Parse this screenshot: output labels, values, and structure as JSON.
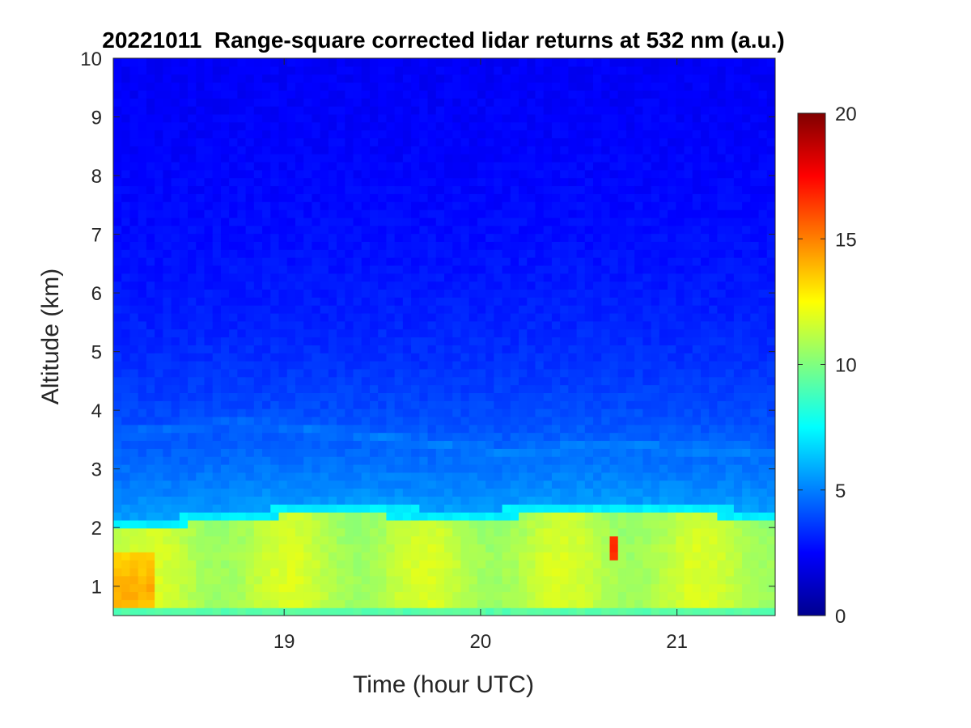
{
  "chart_data": {
    "type": "heatmap",
    "title": "20221011  Range-square corrected lidar returns at 532 nm (a.u.)",
    "xlabel": "Time (hour UTC)",
    "ylabel": "Altitude (km)",
    "xlim": [
      18.13,
      21.5
    ],
    "ylim": [
      0.5,
      10
    ],
    "xticks": [
      19,
      20,
      21
    ],
    "xtick_labels": [
      "19",
      "20",
      "21"
    ],
    "yticks": [
      1,
      2,
      3,
      4,
      5,
      6,
      7,
      8,
      9,
      10
    ],
    "ytick_labels": [
      "1",
      "2",
      "3",
      "4",
      "5",
      "6",
      "7",
      "8",
      "9",
      "10"
    ],
    "colormap": "jet",
    "colorbar": {
      "clim": [
        0,
        20
      ],
      "ticks": [
        0,
        5,
        10,
        15,
        20
      ],
      "tick_labels": [
        "0",
        "5",
        "10",
        "15",
        "20"
      ]
    },
    "features": {
      "boundary_layer_top_km": [
        {
          "time": 18.13,
          "value": 2.0
        },
        {
          "time": 18.35,
          "value": 2.0
        },
        {
          "time": 18.6,
          "value": 2.1
        },
        {
          "time": 19.0,
          "value": 2.2
        },
        {
          "time": 19.5,
          "value": 2.2
        },
        {
          "time": 20.0,
          "value": 2.15
        },
        {
          "time": 20.2,
          "value": 2.2
        },
        {
          "time": 20.5,
          "value": 2.3
        },
        {
          "time": 20.8,
          "value": 2.25
        },
        {
          "time": 21.2,
          "value": 2.2
        },
        {
          "time": 21.5,
          "value": 2.15
        }
      ],
      "aerosol_layer_km": [
        {
          "time": 18.13,
          "value": 3.6
        },
        {
          "time": 18.8,
          "value": 3.8
        },
        {
          "time": 19.5,
          "value": 3.55
        },
        {
          "time": 20.1,
          "value": 3.3
        },
        {
          "time": 20.6,
          "value": 3.4
        },
        {
          "time": 21.5,
          "value": 3.3
        }
      ]
    }
  }
}
